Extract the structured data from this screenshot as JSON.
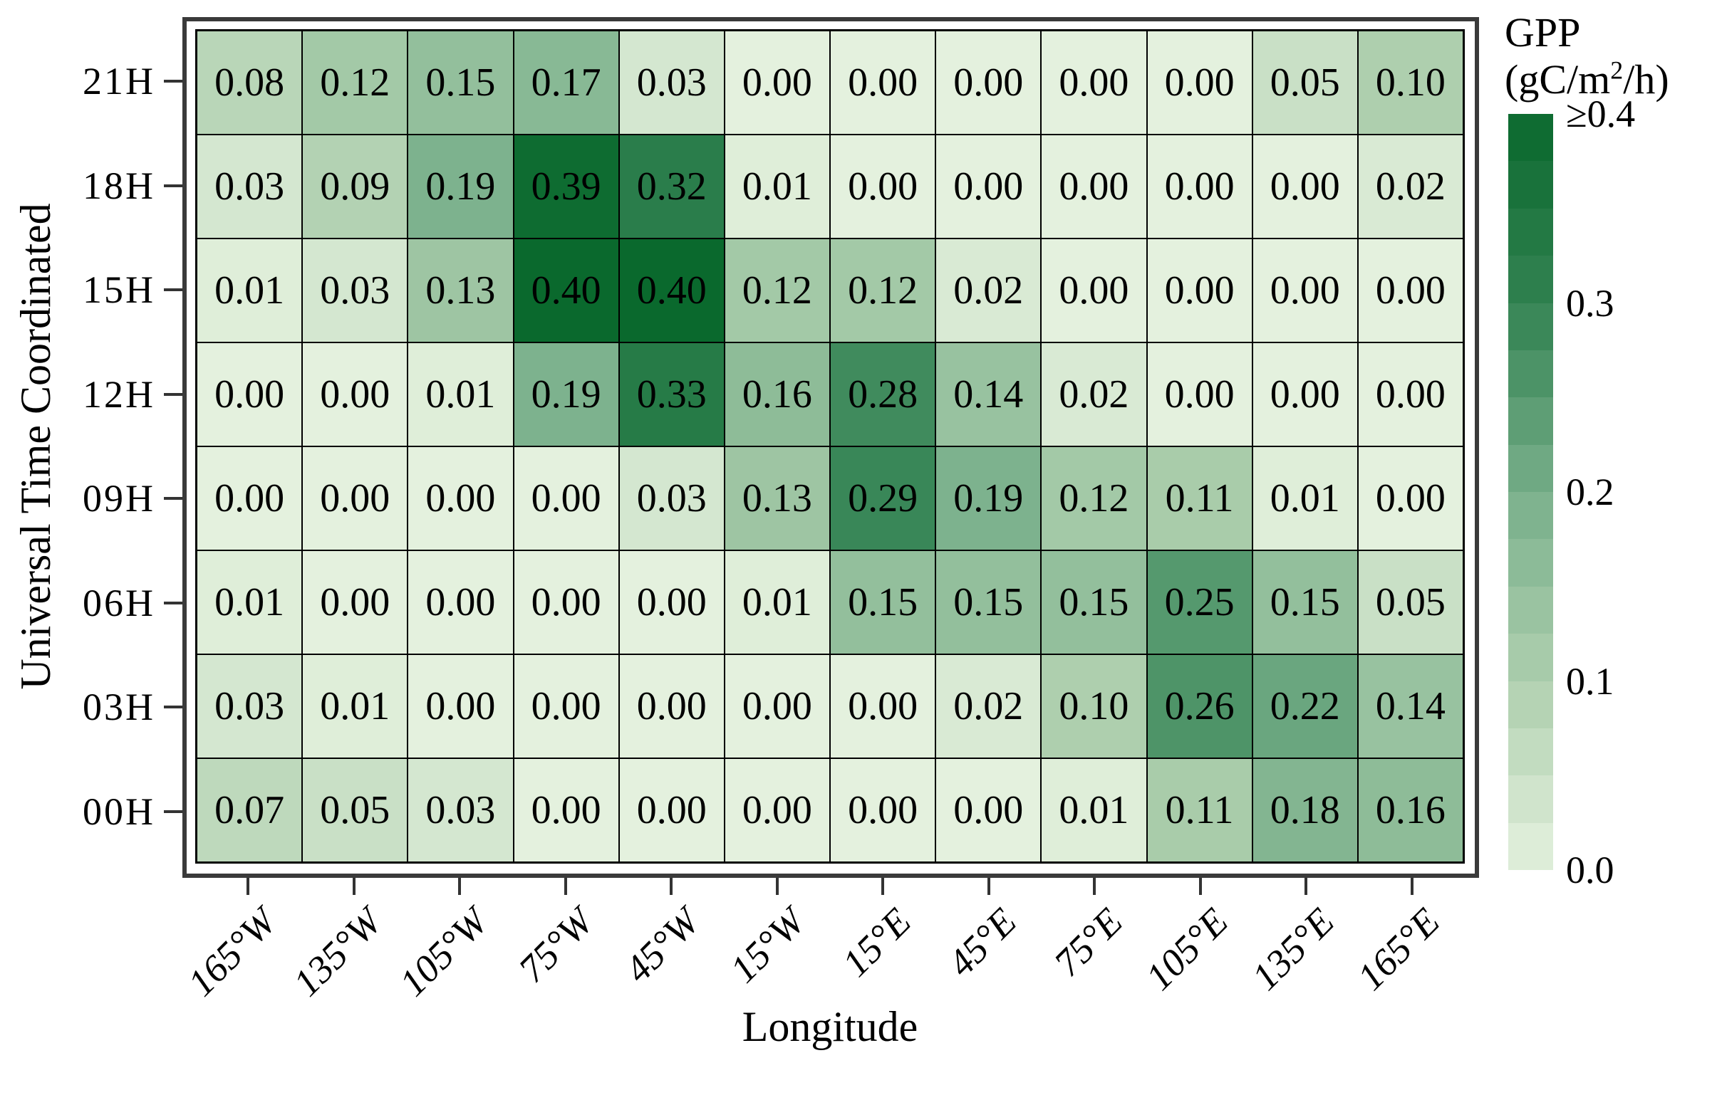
{
  "figure": {
    "x_axis": {
      "title": "Longitude",
      "tick_labels": [
        "165°W",
        "135°W",
        "105°W",
        "75°W",
        "45°W",
        "15°W",
        "15°E",
        "45°E",
        "75°E",
        "105°E",
        "135°E",
        "165°E"
      ]
    },
    "y_axis": {
      "title": "Universal Time Coordinated",
      "tick_labels": [
        "21H",
        "18H",
        "15H",
        "12H",
        "09H",
        "06H",
        "03H",
        "00H"
      ]
    },
    "legend": {
      "title": "GPP",
      "unit_prefix": "(gC/m",
      "unit_sup": "2",
      "unit_suffix": "/h)",
      "tick_labels": [
        "≥0.4",
        "0.3",
        "0.2",
        "0.1",
        "0.0"
      ]
    }
  },
  "chart_data": {
    "type": "heatmap",
    "xlabel": "Longitude",
    "ylabel": "Universal Time Coordinated",
    "legend_title": "GPP (gC/m2/h)",
    "x": [
      "165°W",
      "135°W",
      "105°W",
      "75°W",
      "45°W",
      "15°W",
      "15°E",
      "45°E",
      "75°E",
      "105°E",
      "135°E",
      "165°E"
    ],
    "y": [
      "21H",
      "18H",
      "15H",
      "12H",
      "09H",
      "06H",
      "03H",
      "00H"
    ],
    "values": [
      [
        0.08,
        0.12,
        0.15,
        0.17,
        0.03,
        0.0,
        0.0,
        0.0,
        0.0,
        0.0,
        0.05,
        0.1
      ],
      [
        0.03,
        0.09,
        0.19,
        0.39,
        0.32,
        0.01,
        0.0,
        0.0,
        0.0,
        0.0,
        0.0,
        0.02
      ],
      [
        0.01,
        0.03,
        0.13,
        0.4,
        0.4,
        0.12,
        0.12,
        0.02,
        0.0,
        0.0,
        0.0,
        0.0
      ],
      [
        0.0,
        0.0,
        0.01,
        0.19,
        0.33,
        0.16,
        0.28,
        0.14,
        0.02,
        0.0,
        0.0,
        0.0
      ],
      [
        0.0,
        0.0,
        0.0,
        0.0,
        0.03,
        0.13,
        0.29,
        0.19,
        0.12,
        0.11,
        0.01,
        0.0
      ],
      [
        0.01,
        0.0,
        0.0,
        0.0,
        0.0,
        0.01,
        0.15,
        0.15,
        0.15,
        0.25,
        0.15,
        0.05
      ],
      [
        0.03,
        0.01,
        0.0,
        0.0,
        0.0,
        0.0,
        0.0,
        0.02,
        0.1,
        0.26,
        0.22,
        0.14
      ],
      [
        0.07,
        0.05,
        0.03,
        0.0,
        0.0,
        0.0,
        0.0,
        0.0,
        0.01,
        0.11,
        0.18,
        0.16
      ]
    ],
    "value_range": [
      0.0,
      0.4
    ],
    "colorbar": {
      "breaks": [
        0.4,
        0.3,
        0.2,
        0.1,
        0.0
      ],
      "n_steps": 16,
      "orientation": "vertical",
      "position": "right"
    },
    "color_anchors": [
      {
        "value": 0.0,
        "rgb": [
          228,
          241,
          222
        ]
      },
      {
        "value": 0.1,
        "rgb": [
          174,
          207,
          174
        ]
      },
      {
        "value": 0.2,
        "rgb": [
          120,
          175,
          138
        ]
      },
      {
        "value": 0.3,
        "rgb": [
          50,
          130,
          82
        ]
      },
      {
        "value": 0.4,
        "rgb": [
          10,
          105,
          45
        ]
      }
    ],
    "grid_border_color": "#000000",
    "panel_frame_color": "#3a3a3a"
  }
}
